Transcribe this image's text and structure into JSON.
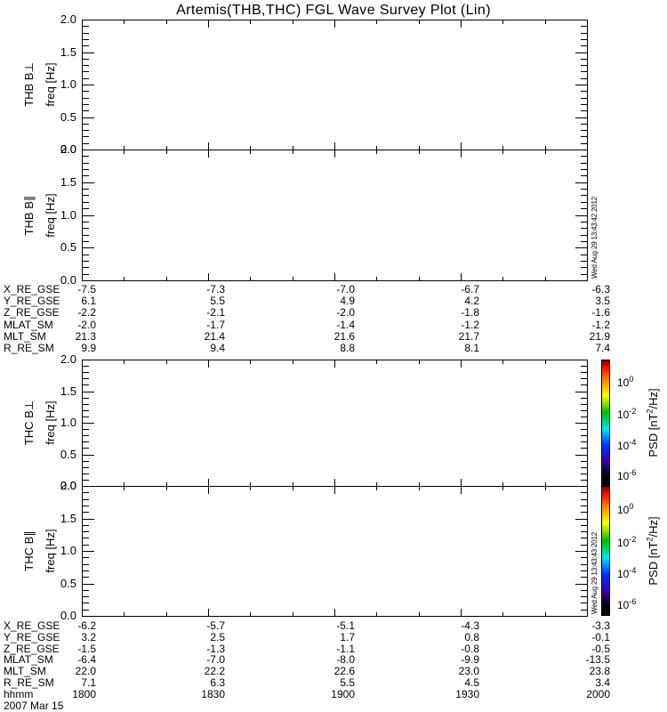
{
  "title": "Artemis(THB,THC) FGL Wave Survey Plot (Lin)",
  "colors": {
    "foreground": "#000000",
    "background": "#ffffff"
  },
  "freq_axis": {
    "label": "freq [Hz]",
    "tick_labels": [
      "2.0",
      "1.5",
      "1.0",
      "0.5",
      "0.0"
    ],
    "min": 0.0,
    "max": 2.0
  },
  "panels": [
    {
      "id": "thb-bperp",
      "label": "THB B⊥"
    },
    {
      "id": "thb-bpar",
      "label": "THB B∥"
    },
    {
      "id": "thc-bperp",
      "label": "THC B⊥"
    },
    {
      "id": "thc-bpar",
      "label": "THC B∥"
    }
  ],
  "timestamps": {
    "thb": "Wed Aug 29 13:43:42 2012",
    "thc": "Wed Aug 29 13:43:43 2012"
  },
  "colorbar": {
    "tick_base": "10",
    "tick_exponents": [
      "0",
      "-2",
      "-4",
      "-6"
    ],
    "unit_pre": "PSD [nT",
    "unit_sup": "2",
    "unit_post": "/Hz]",
    "gradient_stops": [
      [
        0,
        "#7a0000"
      ],
      [
        0.04,
        "#e40000"
      ],
      [
        0.16,
        "#ff8800"
      ],
      [
        0.28,
        "#ffff00"
      ],
      [
        0.42,
        "#00bb00"
      ],
      [
        0.55,
        "#00e8e8"
      ],
      [
        0.68,
        "#0033ff"
      ],
      [
        0.82,
        "#380099"
      ],
      [
        0.93,
        "#000000"
      ],
      [
        1,
        "#000000"
      ]
    ]
  },
  "ephemeris_top": {
    "rows": [
      {
        "label": "X_RE_GSE",
        "values": [
          "-7.5",
          "-7.3",
          "-7.0",
          "-6.7",
          "-6.3"
        ]
      },
      {
        "label": "Y_RE_GSE",
        "values": [
          "6.1",
          "5.5",
          "4.9",
          "4.2",
          "3.5"
        ]
      },
      {
        "label": "Z_RE_GSE",
        "values": [
          "-2.2",
          "-2.1",
          "-2.0",
          "-1.8",
          "-1.6"
        ]
      },
      {
        "label": "MLAT_SM",
        "values": [
          "-2.0",
          "-1.7",
          "-1.4",
          "-1.2",
          "-1.2"
        ]
      },
      {
        "label": "MLT_SM",
        "values": [
          "21.3",
          "21.4",
          "21.6",
          "21.7",
          "21.9"
        ]
      },
      {
        "label": "R_RE_SM",
        "values": [
          "9.9",
          "9.4",
          "8.8",
          "8.1",
          "7.4"
        ]
      }
    ]
  },
  "ephemeris_bottom": {
    "rows": [
      {
        "label": "X_RE_GSE",
        "values": [
          "-6.2",
          "-5.7",
          "-5.1",
          "-4.3",
          "-3.3"
        ]
      },
      {
        "label": "Y_RE_GSE",
        "values": [
          "3.2",
          "2.5",
          "1.7",
          "0.8",
          "-0.1"
        ]
      },
      {
        "label": "Z_RE_GSE",
        "values": [
          "-1.5",
          "-1.3",
          "-1.1",
          "-0.8",
          "-0.5"
        ]
      },
      {
        "label": "MLAT_SM",
        "values": [
          "-6.4",
          "-7.0",
          "-8.0",
          "-9.9",
          "-13.5"
        ]
      },
      {
        "label": "MLT_SM",
        "values": [
          "22.0",
          "22.2",
          "22.6",
          "23.0",
          "23.8"
        ]
      },
      {
        "label": "R_RE_SM",
        "values": [
          "7.1",
          "6.3",
          "5.5",
          "4.5",
          "3.4"
        ]
      }
    ],
    "time_row": {
      "label": "hhmm",
      "values": [
        "1800",
        "1830",
        "1900",
        "1930",
        "2000"
      ]
    },
    "date": "2007 Mar 15"
  },
  "chart_data": [
    {
      "type": "heatmap",
      "title": "THB B⊥",
      "xlabel": "",
      "ylabel": "freq [Hz]",
      "ylim": [
        0.0,
        2.0
      ],
      "x_ticks": [
        "1800",
        "1830",
        "1900",
        "1930",
        "2000"
      ],
      "x_minor_step_min": 10,
      "y_tick_step": 0.5,
      "y_minor_step": 0.1,
      "grid": false,
      "values": []
    },
    {
      "type": "heatmap",
      "title": "THB B∥",
      "xlabel": "",
      "ylabel": "freq [Hz]",
      "ylim": [
        0.0,
        2.0
      ],
      "x_ticks": [
        "1800",
        "1830",
        "1900",
        "1930",
        "2000"
      ],
      "x_minor_step_min": 10,
      "y_tick_step": 0.5,
      "y_minor_step": 0.1,
      "grid": false,
      "values": []
    },
    {
      "type": "heatmap",
      "title": "THC B⊥",
      "xlabel": "",
      "ylabel": "freq [Hz]",
      "ylim": [
        0.0,
        2.0
      ],
      "x_ticks": [
        "1800",
        "1830",
        "1900",
        "1930",
        "2000"
      ],
      "x_minor_step_min": 10,
      "y_tick_step": 0.5,
      "y_minor_step": 0.1,
      "grid": false,
      "values": [],
      "colorbar": {
        "label": "PSD [nT^2/Hz]",
        "ticks": [
          "10^0",
          "10^-2",
          "10^-4",
          "10^-6"
        ],
        "scale": "log"
      }
    },
    {
      "type": "heatmap",
      "title": "THC B∥",
      "xlabel": "",
      "ylabel": "freq [Hz]",
      "ylim": [
        0.0,
        2.0
      ],
      "x_ticks": [
        "1800",
        "1830",
        "1900",
        "1930",
        "2000"
      ],
      "x_minor_step_min": 10,
      "y_tick_step": 0.5,
      "y_minor_step": 0.1,
      "grid": false,
      "values": [],
      "colorbar": {
        "label": "PSD [nT^2/Hz]",
        "ticks": [
          "10^0",
          "10^-2",
          "10^-4",
          "10^-6"
        ],
        "scale": "log"
      }
    }
  ]
}
